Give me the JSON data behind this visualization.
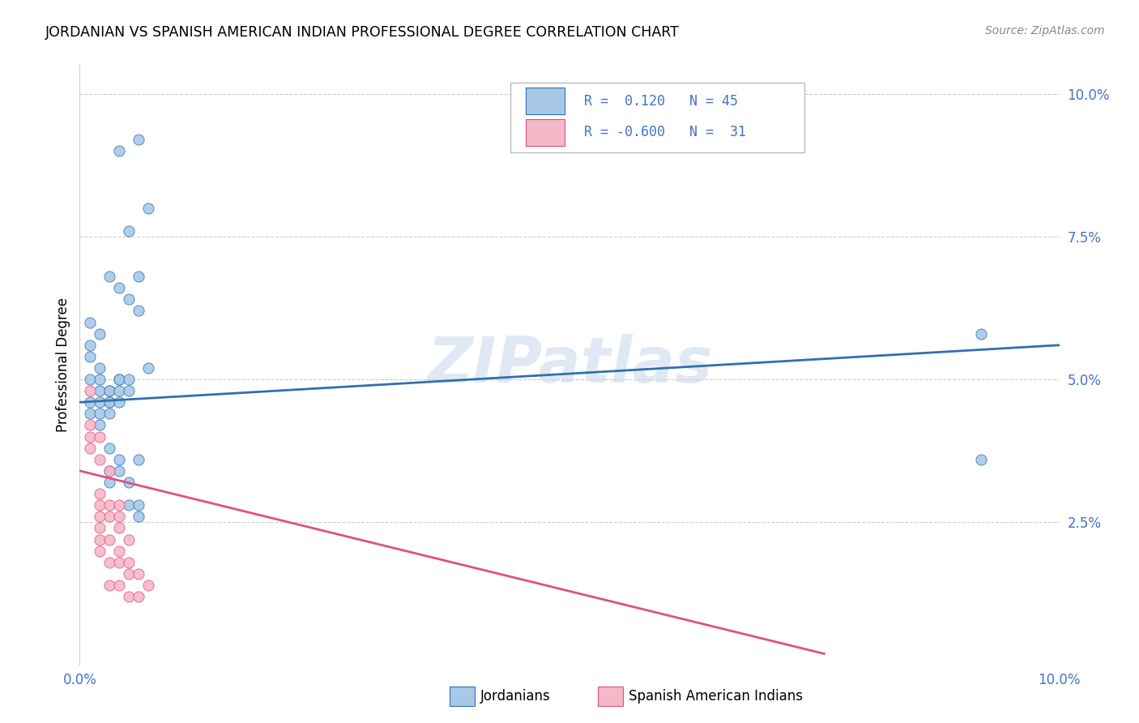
{
  "title": "JORDANIAN VS SPANISH AMERICAN INDIAN PROFESSIONAL DEGREE CORRELATION CHART",
  "source": "Source: ZipAtlas.com",
  "ylabel": "Professional Degree",
  "watermark": "ZIPatlas",
  "blue_color": "#a8c8e8",
  "pink_color": "#f4b8c8",
  "blue_line_color": "#3070b0",
  "pink_line_color": "#e05080",
  "blue_scatter": [
    [
      0.001,
      0.054
    ],
    [
      0.001,
      0.05
    ],
    [
      0.001,
      0.056
    ],
    [
      0.001,
      0.046
    ],
    [
      0.001,
      0.044
    ],
    [
      0.001,
      0.06
    ],
    [
      0.002,
      0.058
    ],
    [
      0.002,
      0.052
    ],
    [
      0.002,
      0.05
    ],
    [
      0.002,
      0.048
    ],
    [
      0.002,
      0.046
    ],
    [
      0.002,
      0.044
    ],
    [
      0.002,
      0.042
    ],
    [
      0.003,
      0.068
    ],
    [
      0.003,
      0.048
    ],
    [
      0.003,
      0.048
    ],
    [
      0.003,
      0.046
    ],
    [
      0.003,
      0.046
    ],
    [
      0.003,
      0.044
    ],
    [
      0.003,
      0.038
    ],
    [
      0.003,
      0.034
    ],
    [
      0.003,
      0.032
    ],
    [
      0.004,
      0.09
    ],
    [
      0.004,
      0.066
    ],
    [
      0.004,
      0.05
    ],
    [
      0.004,
      0.05
    ],
    [
      0.004,
      0.048
    ],
    [
      0.004,
      0.046
    ],
    [
      0.004,
      0.036
    ],
    [
      0.004,
      0.034
    ],
    [
      0.005,
      0.076
    ],
    [
      0.005,
      0.064
    ],
    [
      0.005,
      0.05
    ],
    [
      0.005,
      0.048
    ],
    [
      0.005,
      0.032
    ],
    [
      0.005,
      0.028
    ],
    [
      0.006,
      0.092
    ],
    [
      0.006,
      0.068
    ],
    [
      0.006,
      0.062
    ],
    [
      0.006,
      0.036
    ],
    [
      0.006,
      0.028
    ],
    [
      0.006,
      0.026
    ],
    [
      0.007,
      0.08
    ],
    [
      0.007,
      0.052
    ],
    [
      0.092,
      0.058
    ],
    [
      0.092,
      0.036
    ]
  ],
  "pink_scatter": [
    [
      0.001,
      0.048
    ],
    [
      0.001,
      0.042
    ],
    [
      0.001,
      0.04
    ],
    [
      0.001,
      0.038
    ],
    [
      0.002,
      0.04
    ],
    [
      0.002,
      0.036
    ],
    [
      0.002,
      0.03
    ],
    [
      0.002,
      0.028
    ],
    [
      0.002,
      0.026
    ],
    [
      0.002,
      0.024
    ],
    [
      0.002,
      0.022
    ],
    [
      0.002,
      0.02
    ],
    [
      0.003,
      0.034
    ],
    [
      0.003,
      0.028
    ],
    [
      0.003,
      0.026
    ],
    [
      0.003,
      0.022
    ],
    [
      0.003,
      0.018
    ],
    [
      0.003,
      0.014
    ],
    [
      0.004,
      0.028
    ],
    [
      0.004,
      0.026
    ],
    [
      0.004,
      0.024
    ],
    [
      0.004,
      0.02
    ],
    [
      0.004,
      0.018
    ],
    [
      0.004,
      0.014
    ],
    [
      0.005,
      0.022
    ],
    [
      0.005,
      0.018
    ],
    [
      0.005,
      0.016
    ],
    [
      0.005,
      0.012
    ],
    [
      0.006,
      0.016
    ],
    [
      0.006,
      0.012
    ],
    [
      0.007,
      0.014
    ]
  ],
  "blue_line_x": [
    0.0,
    0.1
  ],
  "blue_line_y": [
    0.046,
    0.056
  ],
  "pink_line_x": [
    0.0,
    0.076
  ],
  "pink_line_y": [
    0.034,
    0.002
  ],
  "xlim": [
    0.0,
    0.1
  ],
  "ylim": [
    0.0,
    0.105
  ],
  "y_ticks": [
    0.0,
    0.025,
    0.05,
    0.075,
    0.1
  ],
  "y_tick_labels": [
    "",
    "2.5%",
    "5.0%",
    "7.5%",
    "10.0%"
  ]
}
